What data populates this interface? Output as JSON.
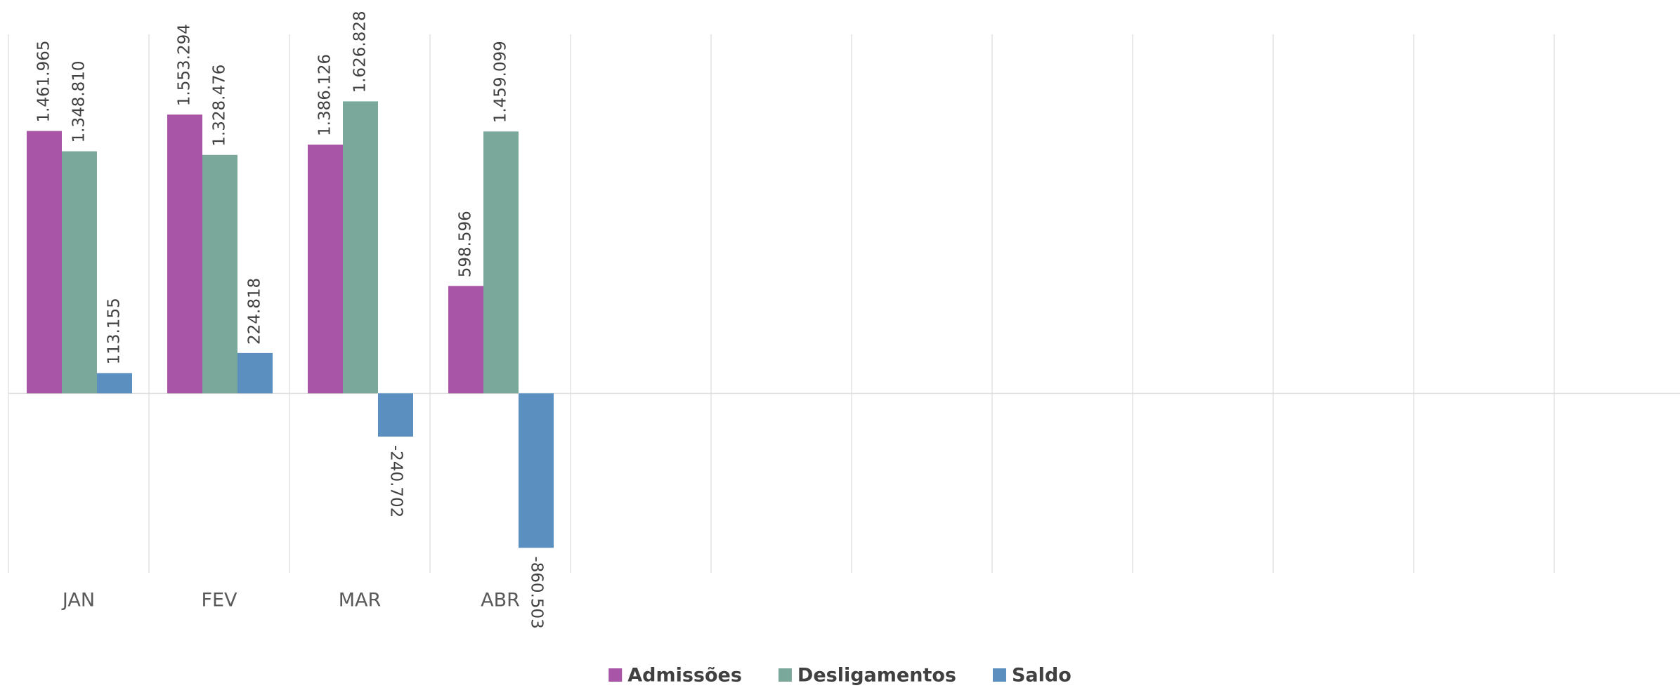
{
  "chart_data": {
    "type": "bar",
    "categories": [
      "JAN",
      "FEV",
      "MAR",
      "ABR",
      null,
      null,
      null,
      null,
      null,
      null,
      null,
      null
    ],
    "series": [
      {
        "name": "Admissões",
        "color": "#a855a8",
        "values": [
          1461965,
          1553294,
          1386126,
          598596,
          null,
          null,
          null,
          null,
          null,
          null,
          null,
          null
        ],
        "value_labels": [
          "1.461.965",
          "1.553.294",
          "1.386.126",
          "598.596",
          null,
          null,
          null,
          null,
          null,
          null,
          null,
          null
        ]
      },
      {
        "name": "Desligamentos",
        "color": "#7aa99c",
        "values": [
          1348810,
          1328476,
          1626828,
          1459099,
          null,
          null,
          null,
          null,
          null,
          null,
          null,
          null
        ],
        "value_labels": [
          "1.348.810",
          "1.328.476",
          "1.626.828",
          "1.459.099",
          null,
          null,
          null,
          null,
          null,
          null,
          null,
          null
        ]
      },
      {
        "name": "Saldo",
        "color": "#5a8fc0",
        "values": [
          113155,
          224818,
          -240702,
          -860503,
          null,
          null,
          null,
          null,
          null,
          null,
          null,
          null
        ],
        "value_labels": [
          "113.155",
          "224.818",
          "-240.702",
          "-860.503",
          null,
          null,
          null,
          null,
          null,
          null,
          null,
          null
        ]
      }
    ],
    "ylim": [
      -1000000,
      2000000
    ],
    "grid": true,
    "legend": "bottom"
  }
}
